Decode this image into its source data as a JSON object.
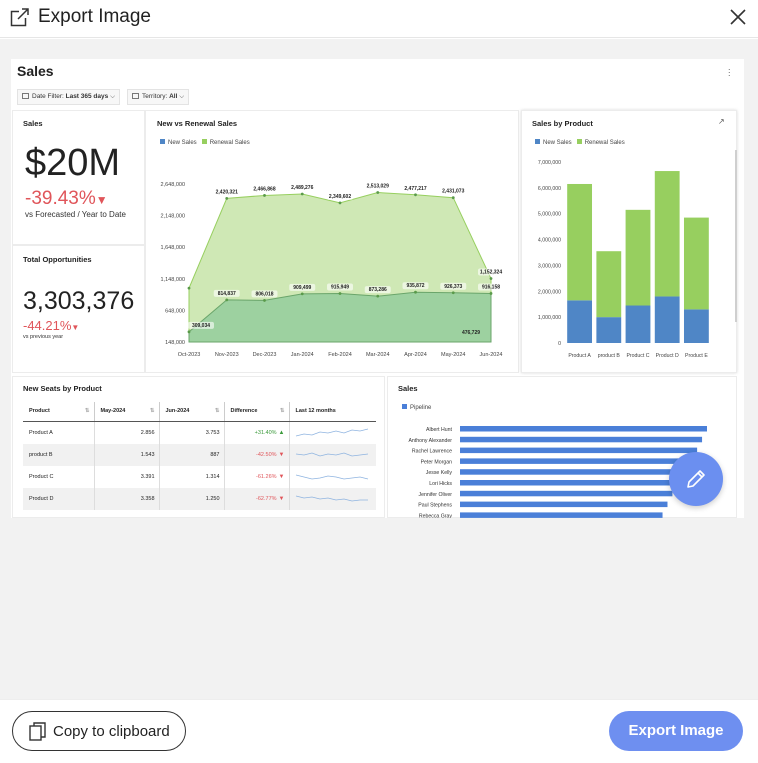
{
  "header": {
    "title": "Export Image"
  },
  "dashboard": {
    "title": "Sales",
    "filters": [
      {
        "label": "Date Filter:",
        "value": "Last 365 days"
      },
      {
        "label": "Territory:",
        "value": "All"
      }
    ]
  },
  "kpi_sales": {
    "title": "Sales",
    "value": "$20M",
    "change": "-39.43%",
    "caption": "vs Forecasted / Year to Date"
  },
  "kpi_opps": {
    "title": "Total Opportunities",
    "value": "3,303,376",
    "change": "-44.21%",
    "caption": "vs previous year"
  },
  "area_chart": {
    "title": "New vs Renewal Sales"
  },
  "bar_chart": {
    "title": "Sales by Product"
  },
  "seats": {
    "title": "New Seats by Product",
    "columns": [
      "Product",
      "May-2024",
      "Jun-2024",
      "Difference",
      "Last 12 months"
    ],
    "rows": [
      {
        "product": "Product A",
        "may": "2.856",
        "jun": "3.753",
        "diff": "+31.40%",
        "trend": "up"
      },
      {
        "product": "product B",
        "may": "1.543",
        "jun": "887",
        "diff": "-42.50%",
        "trend": "down"
      },
      {
        "product": "Product C",
        "may": "3.391",
        "jun": "1.314",
        "diff": "-61.26%",
        "trend": "down"
      },
      {
        "product": "Product D",
        "may": "3.358",
        "jun": "1.250",
        "diff": "-62.77%",
        "trend": "down"
      }
    ]
  },
  "pipeline_chart": {
    "title": "Sales"
  },
  "footer": {
    "copy_label": "Copy to clipboard",
    "export_label": "Export Image"
  },
  "colors": {
    "new_sales": "#4f86c6",
    "renewal_sales": "#97cf5f",
    "accent": "#6e8ff0",
    "negative": "#e0555a",
    "positive": "#3a9a3a"
  },
  "chart_data": [
    {
      "type": "area",
      "title": "New vs Renewal Sales",
      "categories": [
        "Oct-2023",
        "Nov-2023",
        "Dec-2023",
        "Jan-2024",
        "Feb-2024",
        "Mar-2024",
        "Apr-2024",
        "May-2024",
        "Jun-2024"
      ],
      "series": [
        {
          "name": "New Sales",
          "values": [
            309034,
            814837,
            806018,
            909499,
            915949,
            873286,
            935872,
            926373,
            916158
          ],
          "labels": [
            "309,034",
            "814,837",
            "806,018",
            "909,499",
            "915,949",
            "873,286",
            "935,872",
            "926,373",
            "916,158"
          ],
          "color": "#4f86c6"
        },
        {
          "name": "Renewal Sales",
          "values": [
            1000000,
            2420321,
            2466868,
            2489276,
            2349602,
            2513029,
            2477217,
            2431073,
            1152324
          ],
          "labels": [
            "",
            "2,420,321",
            "2,466,868",
            "2,489,276",
            "2,349,602",
            "2,513,029",
            "2,477,217",
            "2,431,073",
            "1,152,324"
          ],
          "color": "#97cf5f"
        }
      ],
      "extra_labels": [
        "476,729"
      ],
      "y_ticks": [
        "2,648,000",
        "2,148,000",
        "1,648,000",
        "1,148,000",
        "648,000",
        "148,000"
      ],
      "ylim": [
        148000,
        2648000
      ],
      "legend": "top-left"
    },
    {
      "type": "bar",
      "title": "Sales by Product",
      "categories": [
        "Product A",
        "product B",
        "Product C",
        "Product D",
        "Product E"
      ],
      "series": [
        {
          "name": "New Sales",
          "values": [
            1650000,
            1000000,
            1450000,
            1800000,
            1300000
          ],
          "color": "#4f86c6"
        },
        {
          "name": "Renewal Sales",
          "values": [
            4500000,
            2550000,
            3700000,
            4850000,
            3550000
          ],
          "color": "#97cf5f"
        }
      ],
      "stacked": true,
      "y_ticks": [
        "7,000,000",
        "6,000,000",
        "5,000,000",
        "4,000,000",
        "3,000,000",
        "2,000,000",
        "1,000,000",
        "0"
      ],
      "ylim": [
        0,
        7000000
      ],
      "legend": "top-left"
    },
    {
      "type": "bar",
      "orientation": "horizontal",
      "title": "Sales",
      "categories": [
        "Albert Hunt",
        "Anthony Alexander",
        "Rachel Lawrence",
        "Peter Morgan",
        "Jesse Kelly",
        "Lori Hicks",
        "Jennifer Oliver",
        "Paul Stephens",
        "Rebecca Gray"
      ],
      "series": [
        {
          "name": "Pipeline",
          "values": [
            100,
            98,
            96,
            93,
            90,
            88,
            86,
            84,
            82
          ],
          "color": "#4a7fd8"
        }
      ],
      "legend": "top-left"
    }
  ]
}
